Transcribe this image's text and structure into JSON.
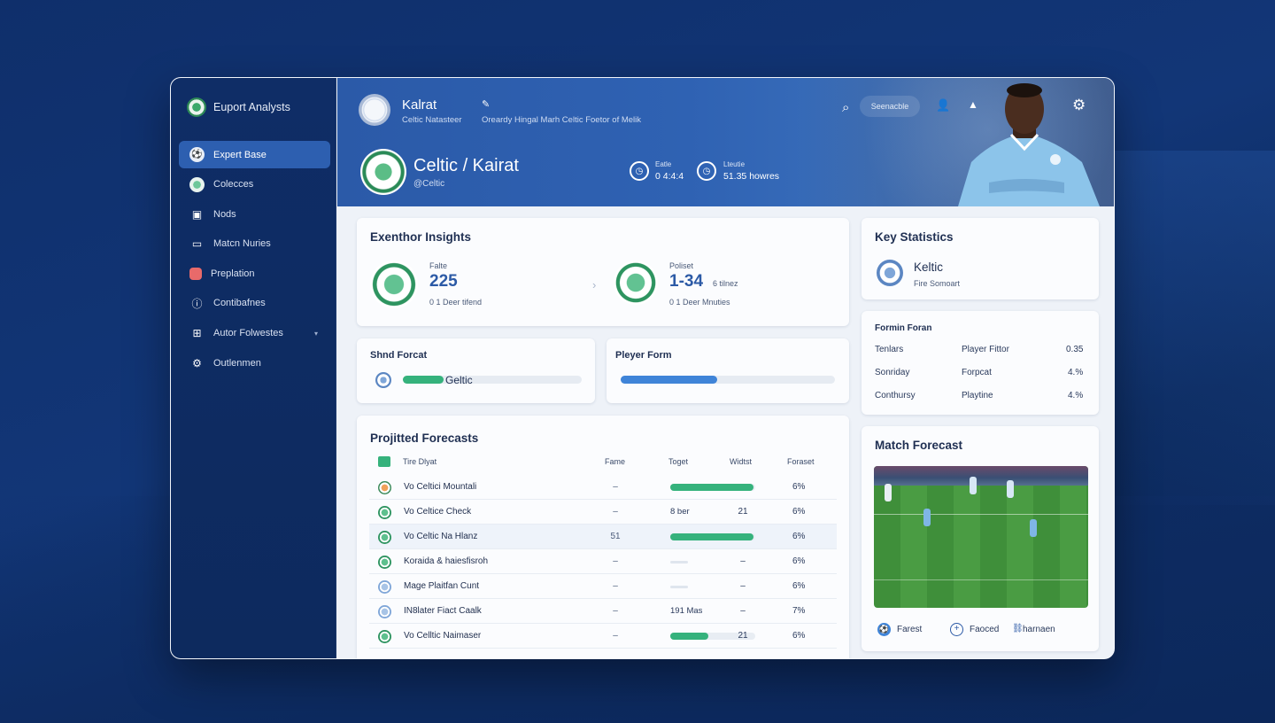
{
  "colors": {
    "accent": "#2d5fb0",
    "green": "#35b27c",
    "blue_bar": "#3f84d8",
    "navy": "#0f2d66"
  },
  "sidebar": {
    "brand": "Euport Analysts",
    "items": [
      {
        "label": "Expert Base",
        "icon": "soccer-ball-icon",
        "active": true
      },
      {
        "label": "Colecces",
        "icon": "club-crest-icon"
      },
      {
        "label": "Nods",
        "icon": "map-icon"
      },
      {
        "label": "Matcn Nuries",
        "icon": "laptop-icon"
      },
      {
        "label": "Preplation",
        "icon": "red-square-icon"
      },
      {
        "label": "Contibafnes",
        "icon": "info-circle-icon"
      },
      {
        "label": "Autor Folwestes",
        "icon": "grid-icon"
      },
      {
        "label": "Outlenmen",
        "icon": "gear-icon"
      }
    ]
  },
  "header": {
    "title": "Kalrat",
    "subtitle": "Celtic Natasteer",
    "description": "Oreardy Hingal Marh Celtic Foetor of Melik",
    "search_label": "Seenacble",
    "match_title": "Celtic / Kairat",
    "match_sub": "@Celtic",
    "stat1_label": "Eatle",
    "stat1_value": "0 4:4:4",
    "stat2_label": "Lteutie",
    "stat2_value": "51.35 howres"
  },
  "insights": {
    "title": "Exenthor Insights",
    "left_label": "Falte",
    "left_value": "225",
    "left_sub": "0 1 Deer tifend",
    "right_label": "Poliset",
    "right_value": "1-34",
    "right_value_suffix": "6 tilnez",
    "right_sub": "0 1 Deer Mnuties"
  },
  "shnd_forecast": {
    "title": "Shnd Forcat",
    "label": "Geltic",
    "fill": 0.23
  },
  "player_form": {
    "title": "Pleyer Form",
    "fill": 0.45
  },
  "projected": {
    "title": "Projitted Forecasts",
    "headers": [
      "Tire Dlyat",
      "Fame",
      "Toget",
      "Widtst",
      "Foraset"
    ],
    "rows": [
      {
        "name": "Vo Celtici Mountali",
        "fame": "–",
        "target": "",
        "bar": 0.98,
        "width": "",
        "forecast": "6%",
        "icon": "orange"
      },
      {
        "name": "Vo Celtice Check",
        "fame": "–",
        "target": "8 ber",
        "bar": 0,
        "width": "21",
        "forecast": "6%",
        "icon": "green"
      },
      {
        "name": "Vo Celtic Na Hlanz",
        "fame": "51",
        "target": "",
        "bar": 0.98,
        "width": "",
        "forecast": "6%",
        "icon": "green",
        "highlight": true
      },
      {
        "name": "Koraida & haiesfisroh",
        "fame": "–",
        "target": "",
        "bar": 0,
        "width": "–",
        "forecast": "6%",
        "icon": "green",
        "dash_bar": true
      },
      {
        "name": "Mage Plaitfan Cunt",
        "fame": "–",
        "target": "",
        "bar": 0,
        "width": "–",
        "forecast": "6%",
        "icon": "blue",
        "dash_bar": true
      },
      {
        "name": "IN8later Fiact Caalk",
        "fame": "–",
        "target": "191 Mas",
        "bar": 0,
        "width": "–",
        "forecast": "7%",
        "icon": "blue"
      },
      {
        "name": "Vo Celltic Naimaser",
        "fame": "–",
        "target": "",
        "bar": 0.45,
        "width": "21",
        "forecast": "6%",
        "icon": "green"
      }
    ]
  },
  "key_stats": {
    "title": "Key Statistics",
    "team": "Keltic",
    "team_sub": "Fire Somoart"
  },
  "formin": {
    "title": "Formin Foran",
    "rows": [
      {
        "a": "Tenlars",
        "b": "Player Fittor",
        "c": "0.35"
      },
      {
        "a": "Sonriday",
        "b": "Forpcat",
        "c": "4.%"
      },
      {
        "a": "Conthursy",
        "b": "Playtine",
        "c": "4.%"
      }
    ]
  },
  "match_forecast": {
    "title": "Match Forecast",
    "legend": [
      {
        "label": "Farest",
        "icon": "soccer-ball-icon"
      },
      {
        "label": "Faoced",
        "icon": "plus-circle-icon"
      },
      {
        "label": "harnaen",
        "icon": "link-icon"
      }
    ]
  }
}
